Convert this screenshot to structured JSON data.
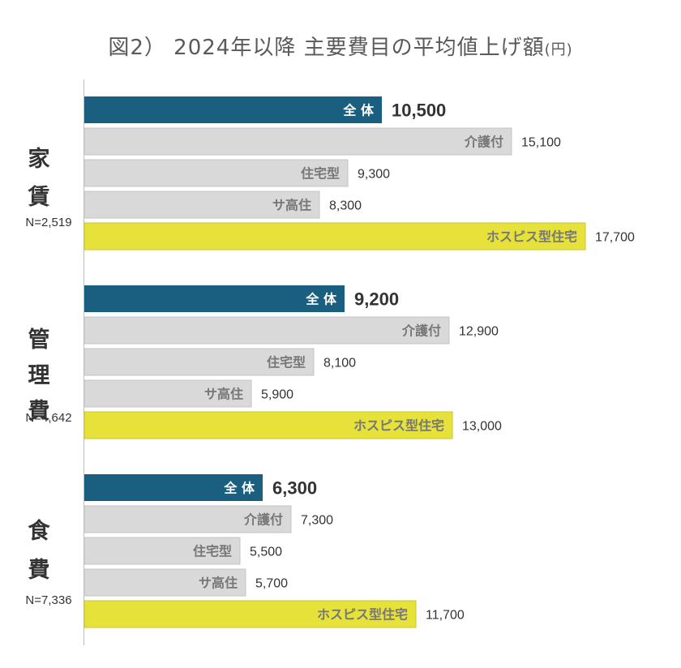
{
  "chart_data": {
    "type": "bar",
    "title": "図2） 2024年以降  主要費目の平均値上げ額",
    "title_unit": "(円)",
    "colors": {
      "total": "#1a5f80",
      "category": "#d9d9d9",
      "hospice": "#e6e23a",
      "category_text": "#777777",
      "total_text": "#ffffff",
      "value_text": "#333333"
    },
    "groups": [
      {
        "name": "家賃",
        "n": "N=2,519",
        "bars": [
          {
            "label": "全 体",
            "value": 10500,
            "display": "10,500",
            "kind": "total"
          },
          {
            "label": "介護付",
            "value": 15100,
            "display": "15,100",
            "kind": "category"
          },
          {
            "label": "住宅型",
            "value": 9300,
            "display": "9,300",
            "kind": "category"
          },
          {
            "label": "サ高住",
            "value": 8300,
            "display": "8,300",
            "kind": "category"
          },
          {
            "label": "ホスピス型住宅",
            "value": 17700,
            "display": "17,700",
            "kind": "hospice"
          }
        ]
      },
      {
        "name": "管理費",
        "n": "N=4,642",
        "bars": [
          {
            "label": "全 体",
            "value": 9200,
            "display": "9,200",
            "kind": "total"
          },
          {
            "label": "介護付",
            "value": 12900,
            "display": "12,900",
            "kind": "category"
          },
          {
            "label": "住宅型",
            "value": 8100,
            "display": "8,100",
            "kind": "category"
          },
          {
            "label": "サ高住",
            "value": 5900,
            "display": "5,900",
            "kind": "category"
          },
          {
            "label": "ホスピス型住宅",
            "value": 13000,
            "display": "13,000",
            "kind": "hospice"
          }
        ]
      },
      {
        "name": "食費",
        "n": "N=7,336",
        "bars": [
          {
            "label": "全 体",
            "value": 6300,
            "display": "6,300",
            "kind": "total"
          },
          {
            "label": "介護付",
            "value": 7300,
            "display": "7,300",
            "kind": "category"
          },
          {
            "label": "住宅型",
            "value": 5500,
            "display": "5,500",
            "kind": "category"
          },
          {
            "label": "サ高住",
            "value": 5700,
            "display": "5,700",
            "kind": "category"
          },
          {
            "label": "ホスピス型住宅",
            "value": 11700,
            "display": "11,700",
            "kind": "hospice"
          }
        ]
      }
    ]
  }
}
